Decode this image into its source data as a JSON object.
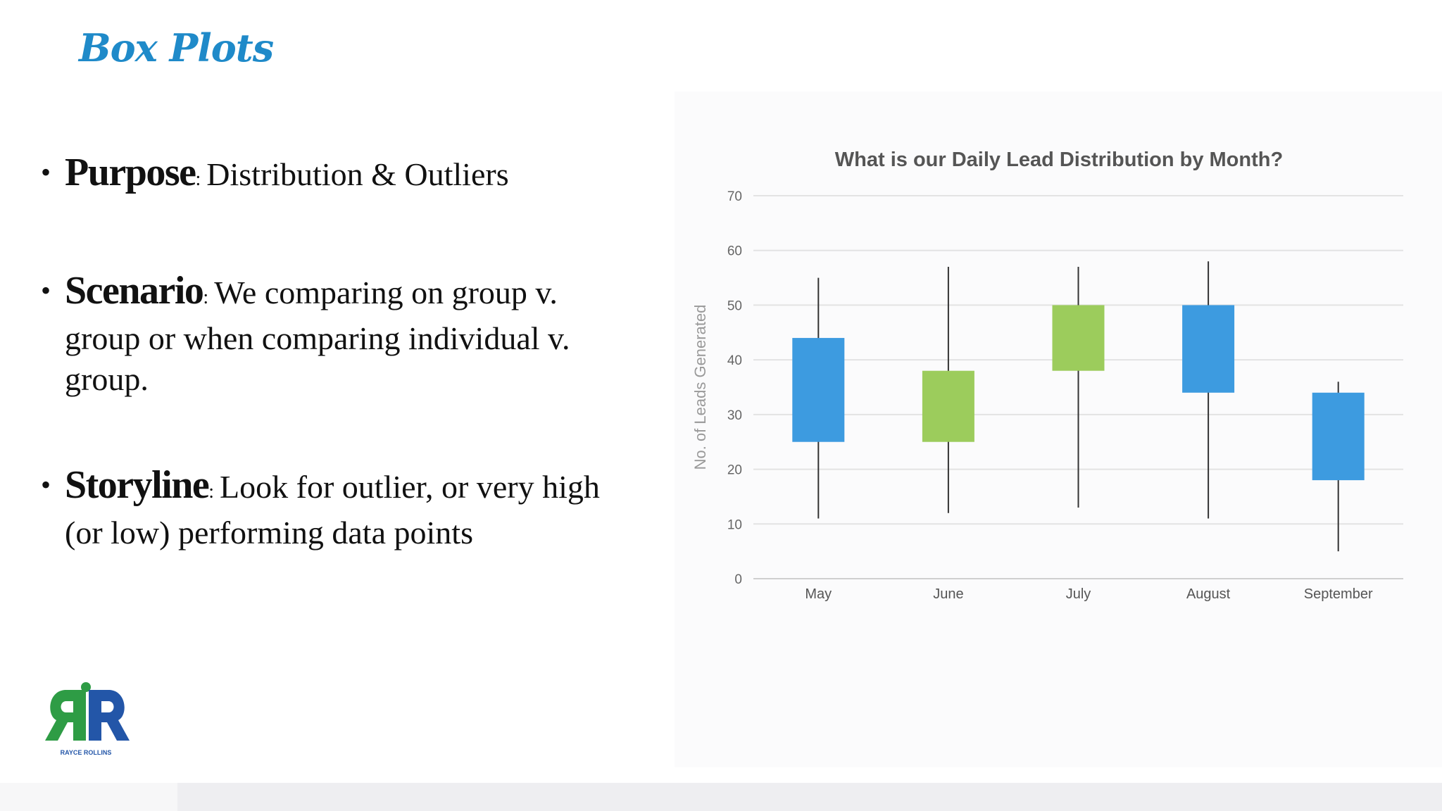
{
  "slide": {
    "title": "Box Plots",
    "bullets": [
      {
        "term": "Purpose",
        "text": "Distribution & Outliers"
      },
      {
        "term": "Scenario",
        "text": "We comparing on group v. group or when comparing individual v. group."
      },
      {
        "term": "Storyline",
        "text": "Look for outlier, or very high (or low) performing data points"
      }
    ],
    "logo_text": "RAYCE ROLLINS"
  },
  "colors": {
    "title": "#1f8ac9",
    "blue_box": "#3d9be0",
    "green_box": "#9ccc5c",
    "logo_green": "#2e9c45",
    "logo_blue": "#2356a8"
  },
  "chart_data": {
    "type": "box",
    "title": "What is our Daily Lead Distribution by Month?",
    "xlabel": "",
    "ylabel": "No. of Leads Generated",
    "ylim": [
      0,
      70
    ],
    "yticks": [
      0,
      10,
      20,
      30,
      40,
      50,
      60,
      70
    ],
    "grid": true,
    "categories": [
      "May",
      "June",
      "July",
      "August",
      "September"
    ],
    "boxes": [
      {
        "category": "May",
        "min": 11,
        "q1": 25,
        "q3": 44,
        "max": 55,
        "color": "#3d9be0"
      },
      {
        "category": "June",
        "min": 12,
        "q1": 25,
        "q3": 38,
        "max": 57,
        "color": "#9ccc5c"
      },
      {
        "category": "July",
        "min": 13,
        "q1": 38,
        "q3": 50,
        "max": 57,
        "color": "#9ccc5c"
      },
      {
        "category": "August",
        "min": 11,
        "q1": 34,
        "q3": 50,
        "max": 58,
        "color": "#3d9be0"
      },
      {
        "category": "September",
        "min": 5,
        "q1": 18,
        "q3": 34,
        "max": 36,
        "color": "#3d9be0"
      }
    ]
  }
}
